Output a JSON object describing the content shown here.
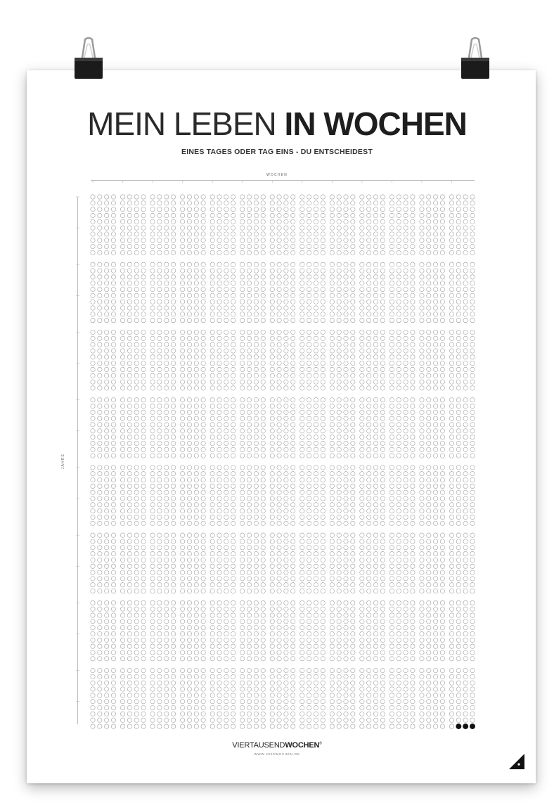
{
  "poster": {
    "title_light": "MEIN LEBEN",
    "title_bold": "IN WOCHEN",
    "subtitle": "EINES TAGES ODER TAG EINS - DU ENTSCHEIDEST",
    "weeks_label": "WOCHEN",
    "years_label": "JAHRE",
    "brand_light": "VIERTAUSEND",
    "brand_bold": "WOCHEN",
    "brand_mark": "®",
    "brand_url": "WWW.4000WOCHEN.DE"
  },
  "grid": {
    "weeks_per_row": 52,
    "rows": 80,
    "filled_weeks_last_row": 3,
    "circle_color": "#9a9a9a",
    "filled_color": "#111111"
  }
}
